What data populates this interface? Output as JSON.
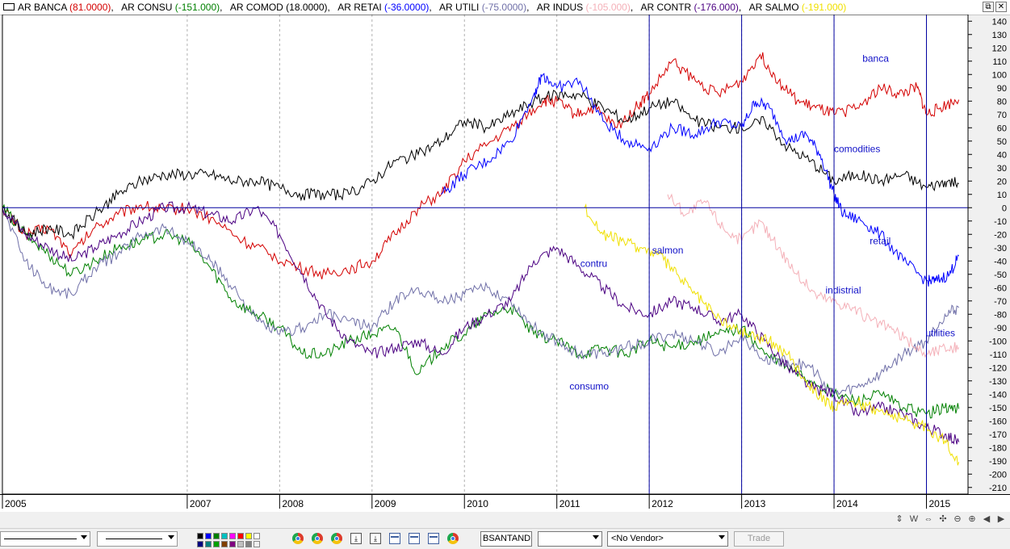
{
  "legend": {
    "items": [
      {
        "name": "AR BANCA",
        "value": "(81.0000)",
        "color": "#d40000"
      },
      {
        "name": "AR CONSU",
        "value": "(-151.000)",
        "color": "#008000"
      },
      {
        "name": "AR COMOD",
        "value": "(18.0000)",
        "color": "#000000"
      },
      {
        "name": "AR RETAI",
        "value": "(-36.0000)",
        "color": "#0000ff"
      },
      {
        "name": "AR UTILI",
        "value": "(-75.0000)",
        "color": "#7070a8"
      },
      {
        "name": "AR INDUS",
        "value": "(-105.000)",
        "color": "#f4b0b8"
      },
      {
        "name": "AR CONTR",
        "value": "(-176.000)",
        "color": "#4b0082"
      },
      {
        "name": "AR SALMO",
        "value": "(-191.000)",
        "color": "#f0e000"
      }
    ],
    "separator": ", "
  },
  "window_controls": {
    "restore": "⧉",
    "close": "✕"
  },
  "chart_buttons": [
    "⇕",
    "W",
    "⇔",
    "✣",
    "⊖",
    "⊕",
    "◀",
    "▶"
  ],
  "toolbar": {
    "symbol_value": "BSANTAND",
    "vendor_value": "<No Vendor>",
    "trade_label": "Trade",
    "colors": [
      "#000000",
      "#0000ff",
      "#008000",
      "#00c0c0",
      "#ff00ff",
      "#ff0000",
      "#ffff00",
      "#ffffff",
      "#000080",
      "#008080",
      "#00a000",
      "#804000",
      "#800080",
      "#c0c0c0",
      "#808080",
      "#f0f0f0"
    ],
    "icons": [
      "chrome-icon",
      "chrome-icon",
      "chrome-icon",
      "download-icon",
      "download-icon",
      "window-icon",
      "window-icon",
      "window-icon",
      "chrome-icon"
    ]
  },
  "chart_data": {
    "type": "line",
    "x_axis": {
      "labels": [
        "2005",
        "2007",
        "2008",
        "2009",
        "2010",
        "2011",
        "2012",
        "2013",
        "2014",
        "2015"
      ],
      "range": [
        2005.0,
        2015.45
      ]
    },
    "y_axis": {
      "min": -215,
      "max": 145,
      "ticks": [
        140,
        130,
        120,
        110,
        100,
        90,
        80,
        70,
        60,
        50,
        40,
        30,
        20,
        10,
        0,
        -10,
        -20,
        -30,
        -40,
        -50,
        -60,
        -70,
        -80,
        -90,
        -100,
        -110,
        -120,
        -130,
        -140,
        -150,
        -160,
        -170,
        -180,
        -190,
        -200,
        -210
      ]
    },
    "reference_lines": {
      "horizontal": [
        0
      ],
      "vertical_years": [
        2012,
        2013,
        2014,
        2015
      ]
    },
    "grid": {
      "vertical_dashed": true
    },
    "annotations": [
      {
        "text": "banca",
        "x": 2014.45,
        "y": 112
      },
      {
        "text": "comodities",
        "x": 2014.25,
        "y": 44
      },
      {
        "text": "retail",
        "x": 2014.5,
        "y": -25
      },
      {
        "text": "indistrial",
        "x": 2014.1,
        "y": -62
      },
      {
        "text": "utilities",
        "x": 2015.15,
        "y": -94
      },
      {
        "text": "contru",
        "x": 2011.4,
        "y": -42
      },
      {
        "text": "salmon",
        "x": 2012.2,
        "y": -32
      },
      {
        "text": "consumo",
        "x": 2011.35,
        "y": -134
      }
    ],
    "series": [
      {
        "name": "AR BANCA",
        "color": "#d40000",
        "x": [
          2005.0,
          2005.25,
          2005.5,
          2005.75,
          2006.0,
          2006.25,
          2006.5,
          2006.75,
          2007.0,
          2007.3,
          2007.6,
          2007.9,
          2008.2,
          2008.5,
          2008.8,
          2009.0,
          2009.25,
          2009.5,
          2009.75,
          2010.0,
          2010.3,
          2010.6,
          2010.85,
          2011.0,
          2011.2,
          2011.4,
          2011.65,
          2011.85,
          2012.0,
          2012.25,
          2012.5,
          2012.75,
          2013.0,
          2013.2,
          2013.4,
          2013.6,
          2013.8,
          2014.0,
          2014.25,
          2014.5,
          2014.7,
          2014.9,
          2015.0,
          2015.15,
          2015.35
        ],
        "y": [
          0,
          -20,
          -15,
          -35,
          -15,
          -5,
          2,
          -2,
          0,
          -10,
          -25,
          -35,
          -45,
          -50,
          -45,
          -40,
          -20,
          0,
          10,
          35,
          50,
          65,
          80,
          80,
          70,
          75,
          60,
          75,
          85,
          110,
          95,
          85,
          95,
          115,
          95,
          80,
          75,
          70,
          75,
          90,
          85,
          90,
          70,
          75,
          81
        ]
      },
      {
        "name": "AR CONSU",
        "color": "#008000",
        "x": [
          2005.0,
          2005.25,
          2005.5,
          2005.75,
          2006.0,
          2006.25,
          2006.5,
          2006.75,
          2007.0,
          2007.25,
          2007.5,
          2007.75,
          2008.0,
          2008.25,
          2008.5,
          2008.75,
          2009.0,
          2009.25,
          2009.5,
          2009.75,
          2010.0,
          2010.25,
          2010.5,
          2010.75,
          2011.0,
          2011.25,
          2011.5,
          2011.75,
          2012.0,
          2012.25,
          2012.5,
          2012.75,
          2013.0,
          2013.25,
          2013.5,
          2013.75,
          2014.0,
          2014.25,
          2014.5,
          2014.75,
          2015.0,
          2015.2,
          2015.35
        ],
        "y": [
          0,
          -20,
          -35,
          -50,
          -40,
          -30,
          -25,
          -20,
          -25,
          -45,
          -70,
          -80,
          -90,
          -110,
          -110,
          -100,
          -95,
          -90,
          -125,
          -105,
          -95,
          -80,
          -75,
          -95,
          -100,
          -110,
          -105,
          -110,
          -100,
          -105,
          -100,
          -95,
          -90,
          -110,
          -120,
          -130,
          -140,
          -145,
          -140,
          -150,
          -155,
          -150,
          -151
        ]
      },
      {
        "name": "AR COMOD",
        "color": "#000000",
        "x": [
          2005.0,
          2005.25,
          2005.5,
          2005.75,
          2006.0,
          2006.25,
          2006.5,
          2006.75,
          2007.0,
          2007.25,
          2007.5,
          2007.75,
          2008.0,
          2008.25,
          2008.5,
          2008.75,
          2009.0,
          2009.25,
          2009.5,
          2009.75,
          2010.0,
          2010.25,
          2010.5,
          2010.75,
          2011.0,
          2011.25,
          2011.5,
          2011.75,
          2012.0,
          2012.25,
          2012.5,
          2012.75,
          2013.0,
          2013.25,
          2013.5,
          2013.75,
          2014.0,
          2014.25,
          2014.5,
          2014.75,
          2015.0,
          2015.2,
          2015.35
        ],
        "y": [
          0,
          -20,
          -15,
          -20,
          -5,
          10,
          20,
          25,
          25,
          25,
          20,
          20,
          15,
          10,
          10,
          10,
          20,
          35,
          40,
          50,
          65,
          60,
          70,
          80,
          85,
          85,
          75,
          65,
          75,
          80,
          65,
          60,
          60,
          65,
          45,
          35,
          20,
          25,
          20,
          25,
          15,
          20,
          18
        ]
      },
      {
        "name": "AR RETAI",
        "color": "#0000ff",
        "x": [
          2009.75,
          2010.0,
          2010.25,
          2010.5,
          2010.75,
          2010.85,
          2011.0,
          2011.25,
          2011.5,
          2011.75,
          2012.0,
          2012.25,
          2012.5,
          2012.75,
          2013.0,
          2013.15,
          2013.3,
          2013.5,
          2013.7,
          2013.85,
          2014.0,
          2014.1,
          2014.3,
          2014.5,
          2014.75,
          2015.0,
          2015.1,
          2015.25,
          2015.35
        ],
        "y": [
          10,
          25,
          35,
          50,
          85,
          100,
          90,
          95,
          65,
          50,
          45,
          60,
          55,
          65,
          60,
          80,
          75,
          50,
          55,
          40,
          10,
          -5,
          -10,
          -20,
          -40,
          -55,
          -55,
          -50,
          -36
        ]
      },
      {
        "name": "AR UTILI",
        "color": "#7070a8",
        "x": [
          2005.0,
          2005.25,
          2005.5,
          2005.75,
          2006.0,
          2006.25,
          2006.5,
          2006.75,
          2007.0,
          2007.25,
          2007.5,
          2007.75,
          2008.0,
          2008.25,
          2008.5,
          2008.75,
          2009.0,
          2009.25,
          2009.5,
          2009.75,
          2010.0,
          2010.25,
          2010.5,
          2010.75,
          2011.0,
          2011.25,
          2011.5,
          2011.75,
          2012.0,
          2012.25,
          2012.5,
          2012.75,
          2013.0,
          2013.25,
          2013.5,
          2013.75,
          2014.0,
          2014.25,
          2014.5,
          2014.75,
          2015.0,
          2015.2,
          2015.35
        ],
        "y": [
          0,
          -40,
          -60,
          -65,
          -45,
          -35,
          -20,
          -15,
          -25,
          -40,
          -60,
          -85,
          -95,
          -90,
          -80,
          -85,
          -90,
          -70,
          -60,
          -70,
          -65,
          -60,
          -70,
          -90,
          -100,
          -110,
          -110,
          -105,
          -100,
          -95,
          -100,
          -110,
          -95,
          -115,
          -115,
          -120,
          -140,
          -135,
          -125,
          -110,
          -100,
          -80,
          -75
        ]
      },
      {
        "name": "AR INDUS",
        "color": "#f4b0b8",
        "x": [
          2012.2,
          2012.4,
          2012.6,
          2012.8,
          2013.0,
          2013.2,
          2013.4,
          2013.6,
          2013.8,
          2014.0,
          2014.2,
          2014.4,
          2014.6,
          2014.8,
          2015.0,
          2015.2,
          2015.35
        ],
        "y": [
          10,
          -5,
          5,
          -15,
          -25,
          -10,
          -30,
          -50,
          -65,
          -70,
          -75,
          -85,
          -90,
          -100,
          -110,
          -105,
          -105
        ]
      },
      {
        "name": "AR CONTR",
        "color": "#4b0082",
        "x": [
          2005.0,
          2005.25,
          2005.5,
          2005.75,
          2006.0,
          2006.25,
          2006.5,
          2006.75,
          2007.0,
          2007.25,
          2007.5,
          2007.75,
          2008.0,
          2008.25,
          2008.5,
          2008.75,
          2009.0,
          2009.25,
          2009.5,
          2009.75,
          2010.0,
          2010.25,
          2010.5,
          2010.75,
          2011.0,
          2011.25,
          2011.5,
          2011.75,
          2012.0,
          2012.25,
          2012.5,
          2012.75,
          2013.0,
          2013.25,
          2013.5,
          2013.75,
          2014.0,
          2014.25,
          2014.5,
          2014.75,
          2015.0,
          2015.2,
          2015.35
        ],
        "y": [
          0,
          -20,
          -30,
          -40,
          -30,
          -20,
          -10,
          0,
          0,
          -5,
          -10,
          0,
          -20,
          -50,
          -80,
          -100,
          -110,
          -105,
          -100,
          -110,
          -90,
          -80,
          -70,
          -40,
          -30,
          -45,
          -60,
          -75,
          -80,
          -70,
          -75,
          -85,
          -80,
          -100,
          -120,
          -135,
          -140,
          -155,
          -150,
          -155,
          -165,
          -170,
          -176
        ]
      },
      {
        "name": "AR SALMO",
        "color": "#f0e000",
        "x": [
          2011.3,
          2011.5,
          2011.7,
          2011.9,
          2012.1,
          2012.3,
          2012.5,
          2012.7,
          2012.9,
          2013.1,
          2013.3,
          2013.5,
          2013.7,
          2013.9,
          2014.0,
          2014.2,
          2014.4,
          2014.6,
          2014.8,
          2015.0,
          2015.2,
          2015.35
        ],
        "y": [
          0,
          -20,
          -25,
          -30,
          -35,
          -50,
          -65,
          -80,
          -90,
          -95,
          -100,
          -110,
          -130,
          -145,
          -150,
          -145,
          -150,
          -155,
          -160,
          -165,
          -175,
          -191
        ]
      }
    ]
  }
}
